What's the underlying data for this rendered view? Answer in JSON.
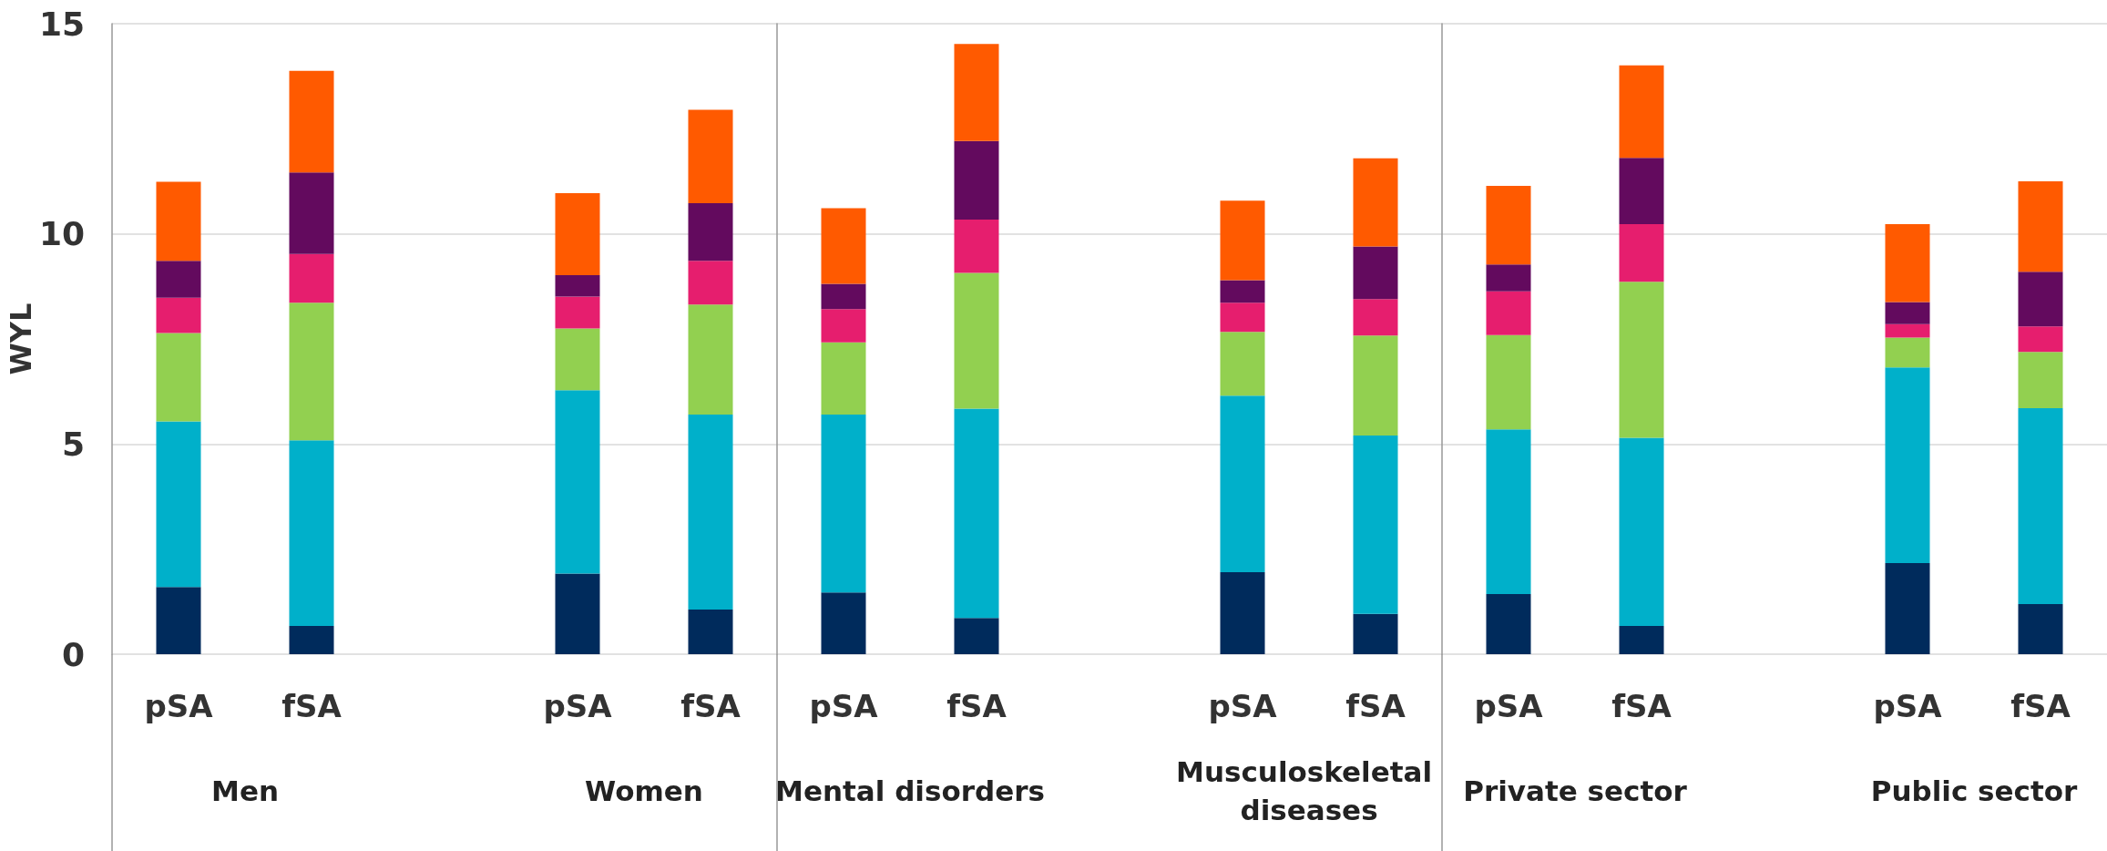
{
  "chart_data": [
    {
      "type": "bar",
      "stacked": true,
      "ylabel": "WYL",
      "categories": [
        "pSA",
        "fSA",
        null,
        "pSA",
        "fSA"
      ],
      "series": [
        {
          "color": "#002b5c",
          "values": [
            1.6,
            0.67,
            null,
            1.92,
            1.06
          ]
        },
        {
          "color": "#00b0ca",
          "values": [
            3.94,
            4.42,
            null,
            4.36,
            4.64
          ]
        },
        {
          "color": "#92d050",
          "values": [
            2.1,
            3.27,
            null,
            1.47,
            2.62
          ]
        },
        {
          "color": "#e61e6e",
          "values": [
            0.84,
            1.16,
            null,
            0.76,
            1.04
          ]
        },
        {
          "color": "#630a5e",
          "values": [
            0.88,
            1.94,
            null,
            0.51,
            1.37
          ]
        },
        {
          "color": "#ff5a00",
          "values": [
            1.88,
            2.42,
            null,
            1.95,
            2.22
          ]
        }
      ],
      "ylim": [
        0,
        15
      ],
      "yticks": [
        0,
        5,
        10,
        15
      ],
      "grid": "y",
      "annotations": [
        "Men",
        "Women"
      ]
    },
    {
      "type": "bar",
      "stacked": true,
      "categories": [
        "pSA",
        "fSA",
        null,
        "pSA",
        "fSA"
      ],
      "series": [
        {
          "color": "#002b5c",
          "values": [
            1.47,
            0.86,
            null,
            1.95,
            0.96
          ]
        },
        {
          "color": "#00b0ca",
          "values": [
            4.23,
            4.98,
            null,
            4.2,
            4.24
          ]
        },
        {
          "color": "#92d050",
          "values": [
            1.72,
            3.23,
            null,
            1.52,
            2.38
          ]
        },
        {
          "color": "#e61e6e",
          "values": [
            0.79,
            1.27,
            null,
            0.69,
            0.87
          ]
        },
        {
          "color": "#630a5e",
          "values": [
            0.6,
            1.87,
            null,
            0.54,
            1.25
          ]
        },
        {
          "color": "#ff5a00",
          "values": [
            1.8,
            2.31,
            null,
            1.89,
            2.1
          ]
        }
      ],
      "ylim": [
        0,
        15
      ],
      "yticks": [
        0,
        5,
        10,
        15
      ],
      "grid": "y",
      "tick_labels": "x",
      "annotations": [
        "Mental disorders",
        "Musculoskeletal diseases"
      ]
    },
    {
      "type": "bar",
      "stacked": true,
      "categories": [
        "pSA",
        "fSA",
        null,
        "pSA",
        "fSA"
      ],
      "series": [
        {
          "color": "#002b5c",
          "values": [
            1.43,
            0.67,
            null,
            2.17,
            1.19
          ]
        },
        {
          "color": "#00b0ca",
          "values": [
            3.92,
            4.48,
            null,
            4.65,
            4.66
          ]
        },
        {
          "color": "#92d050",
          "values": [
            2.24,
            3.71,
            null,
            0.71,
            1.34
          ]
        },
        {
          "color": "#e61e6e",
          "values": [
            1.04,
            1.37,
            null,
            0.32,
            0.61
          ]
        },
        {
          "color": "#630a5e",
          "values": [
            0.64,
            1.58,
            null,
            0.53,
            1.3
          ]
        },
        {
          "color": "#ff5a00",
          "values": [
            1.87,
            2.2,
            null,
            1.85,
            2.15
          ]
        }
      ],
      "ylim": [
        0,
        15
      ],
      "yticks": [
        0,
        5,
        10,
        15
      ],
      "grid": "y",
      "tick_labels": "x",
      "annotations": [
        "Private sector",
        "Public sector"
      ]
    }
  ]
}
